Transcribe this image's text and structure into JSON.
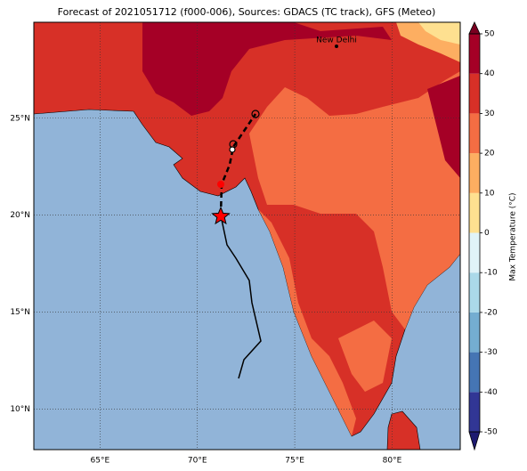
{
  "title": "Forecast of 2021051712 (f000-006), Sources: GDACS (TC track), GFS (Meteo)",
  "map": {
    "xlim": [
      61.6,
      83.5
    ],
    "ylim": [
      7.9,
      29.95
    ],
    "xticks": [
      {
        "value": 65,
        "label": "65°E"
      },
      {
        "value": 70,
        "label": "70°E"
      },
      {
        "value": 75,
        "label": "75°E"
      },
      {
        "value": 80,
        "label": "80°E"
      }
    ],
    "yticks": [
      {
        "value": 10,
        "label": "10°N"
      },
      {
        "value": 15,
        "label": "15°N"
      },
      {
        "value": 20,
        "label": "20°N"
      },
      {
        "value": 25,
        "label": "25°N"
      }
    ],
    "city": "New Delhi"
  },
  "colorbar": {
    "label": "Max Temperature (°C)",
    "ylim": [
      -50,
      50
    ],
    "ticks": [
      -50,
      -40,
      -30,
      -20,
      -10,
      0,
      10,
      20,
      30,
      40,
      50
    ],
    "colors": [
      "#313695",
      "#4575b4",
      "#74add1",
      "#abd9e9",
      "#e0f3f8",
      "#fee090",
      "#fdae61",
      "#f46d43",
      "#d73027",
      "#a50026"
    ],
    "under_color": "#1d1a70",
    "over_color": "#7a0020"
  }
}
